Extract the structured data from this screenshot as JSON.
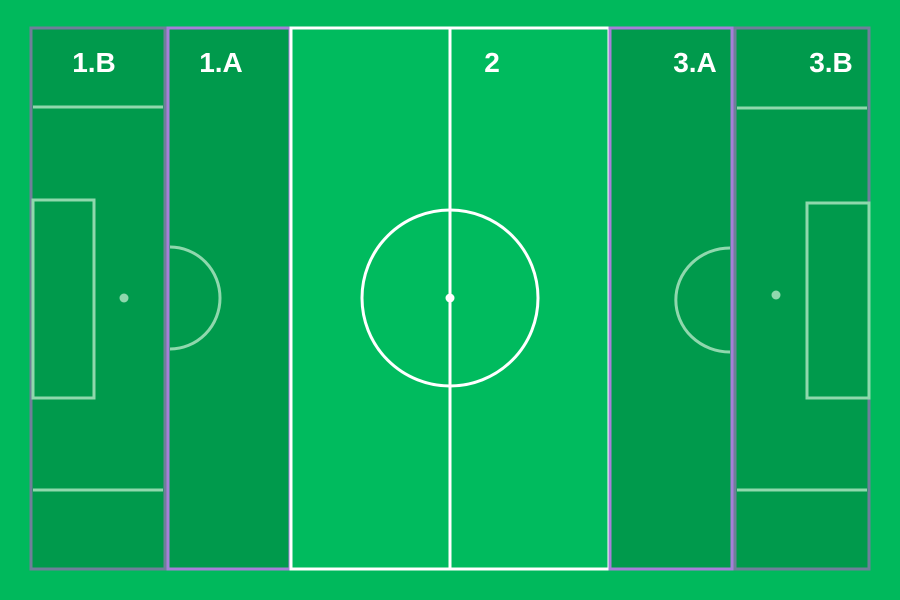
{
  "zones": [
    {
      "id": "1b",
      "label": "1.B"
    },
    {
      "id": "1a",
      "label": "1.A"
    },
    {
      "id": "2",
      "label": "2"
    },
    {
      "id": "3a",
      "label": "3.A"
    },
    {
      "id": "3b",
      "label": "3.B"
    }
  ],
  "colors": {
    "background": "#00b95c",
    "pitch_light": "#00bb5e",
    "zone_dark": "#009a4c",
    "zone_border_purple": "#a77fd9",
    "zone_border_gray": "#6f7f9a",
    "line_white": "#ffffff",
    "line_faded": "#8fd8ad"
  }
}
